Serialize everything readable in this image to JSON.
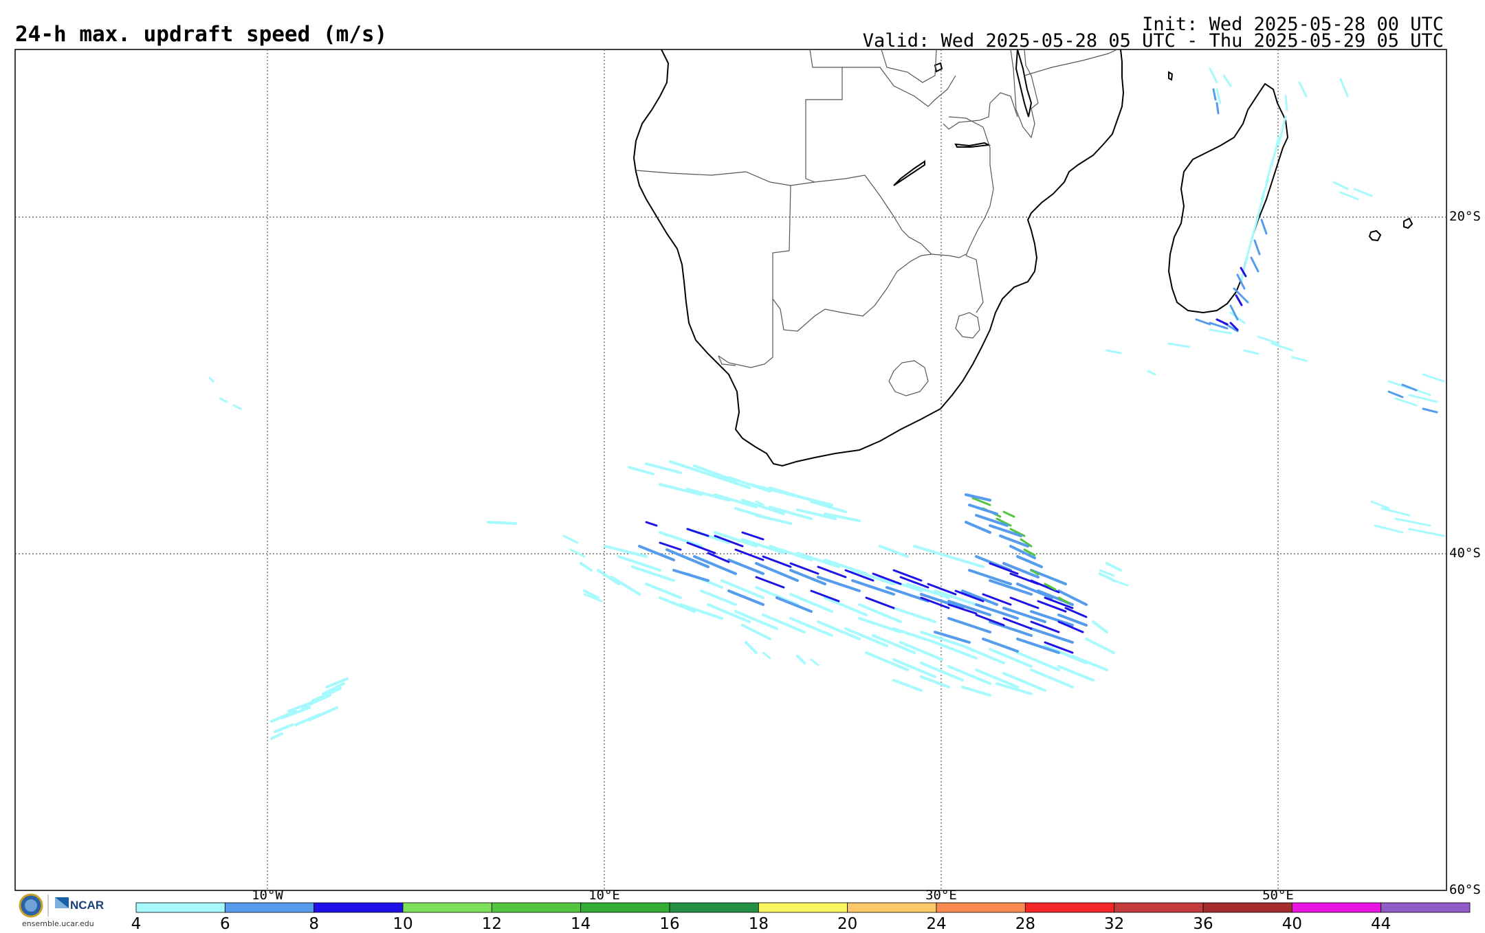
{
  "title": "24-h max. updraft speed (m/s)",
  "init": "Init: Wed 2025-05-28 00 UTC",
  "valid": "Valid: Wed 2025-05-28 05 UTC - Thu 2025-05-29 05 UTC",
  "grid": {
    "lat_labels": [
      "20°S",
      "40°S",
      "60°S"
    ],
    "lon_labels": [
      "10°W",
      "10°E",
      "30°E",
      "50°E"
    ]
  },
  "colorbar": {
    "ticks": [
      "4",
      "6",
      "8",
      "10",
      "12",
      "14",
      "16",
      "18",
      "20",
      "24",
      "28",
      "32",
      "36",
      "40",
      "44"
    ],
    "colors": [
      "#a6f9fc",
      "#559cec",
      "#1e12e8",
      "#7ee05a",
      "#52c440",
      "#34ad34",
      "#248e42",
      "#fcf562",
      "#fbc767",
      "#f88a4f",
      "#f22626",
      "#c33a3a",
      "#a52c2c",
      "#e816e0",
      "#8f5cc8"
    ]
  },
  "logo": {
    "org": "NCAR",
    "url": "ensemble.ucar.edu"
  }
}
